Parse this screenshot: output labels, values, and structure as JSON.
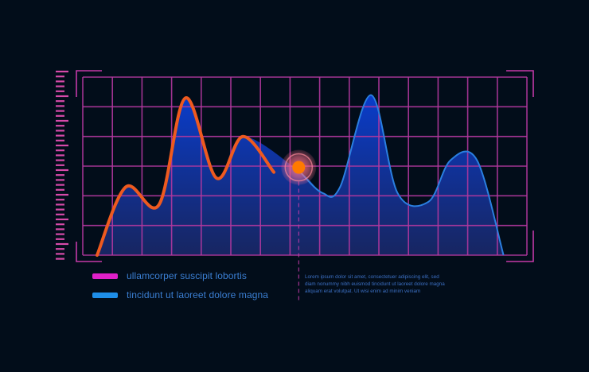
{
  "colors": {
    "background": "#020d1a",
    "grid": "#b2379f",
    "frame": "#c43aa8",
    "ruler": "#d64aa9",
    "orange": "#ee5a1f",
    "blue_line": "#2a7fe0",
    "fill_top": "#0a3fd4",
    "fill_bottom": "#1b2a6e",
    "legend_text": "#3b7fd3",
    "annotation_text": "#3c70c4",
    "marker": "#ff7a00",
    "marker_glow": "#ff7a8a"
  },
  "chart_data": {
    "type": "area",
    "grid": true,
    "legend_position": "bottom-left",
    "series": [
      {
        "name": "ullamcorper suscipit lobortis",
        "color": "#ee5a1f",
        "legend_color": "#e020c8",
        "x": [
          0.0,
          0.65,
          1.4,
          2.0,
          2.7,
          3.3,
          4.0,
          4.6,
          5.0
        ],
        "y": [
          0.0,
          2.3,
          1.7,
          5.3,
          2.6,
          4.0,
          2.8,
          2.8,
          2.8
        ]
      },
      {
        "name": "tincidunt ut laoreet dolore magna",
        "color": "#2a7fe0",
        "legend_color": "#1e8ee8",
        "x": [
          4.6,
          5.1,
          5.5,
          6.2,
          6.8,
          7.5,
          8.0,
          8.6,
          9.2
        ],
        "y": [
          2.8,
          2.1,
          2.3,
          5.4,
          2.1,
          1.8,
          3.2,
          3.2,
          0.0
        ]
      }
    ],
    "highlight": {
      "x": 4.6,
      "y": 2.8
    }
  },
  "annotation": {
    "lines": [
      "Lorem ipsum dolor sit amet, consectetuer adipiscing elit, sed",
      "diam nonummy nibh euismod tincidunt ut laoreet dolore magna",
      "aliquam erat volutpat. Ut wisi enim ad minim veniam"
    ]
  }
}
